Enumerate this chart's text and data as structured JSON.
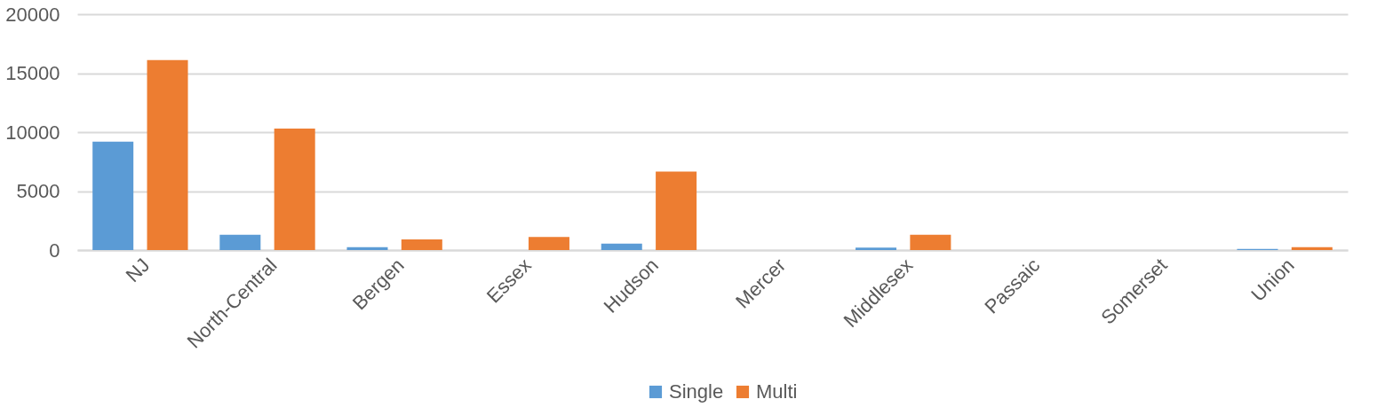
{
  "chart_data": {
    "type": "bar",
    "categories": [
      "NJ",
      "North-Central",
      "Bergen",
      "Essex",
      "Hudson",
      "Mercer",
      "Middlesex",
      "Passaic",
      "Somerset",
      "Union"
    ],
    "series": [
      {
        "name": "Single",
        "color": "#5b9bd5",
        "values": [
          9200,
          1300,
          250,
          0,
          550,
          0,
          200,
          0,
          0,
          100
        ]
      },
      {
        "name": "Multi",
        "color": "#ed7d31",
        "values": [
          16100,
          10300,
          900,
          1100,
          6650,
          null,
          1300,
          0,
          0,
          250
        ]
      }
    ],
    "ylim": [
      0,
      20000
    ],
    "yticks": [
      0,
      5000,
      10000,
      15000,
      20000
    ],
    "grid": "y",
    "legend": "bottom"
  }
}
